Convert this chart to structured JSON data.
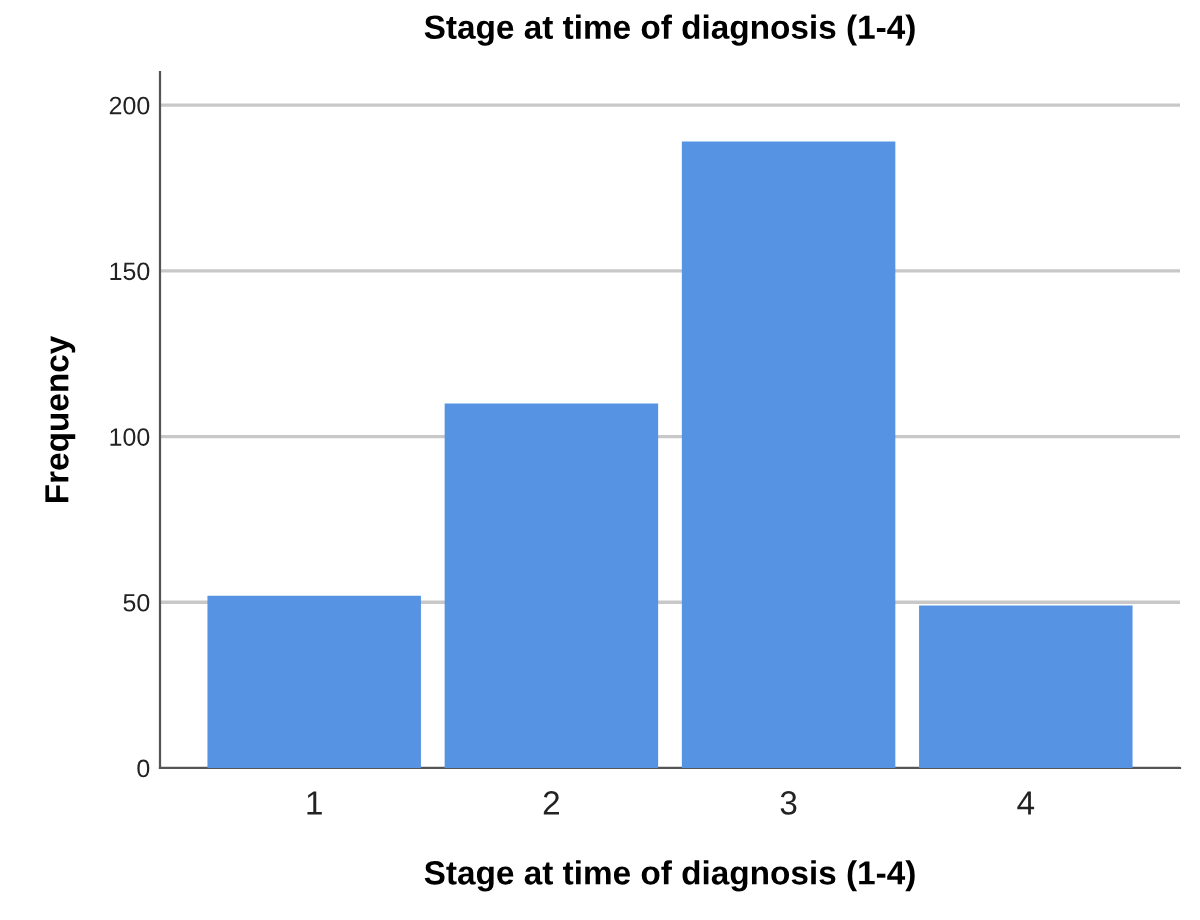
{
  "chart_data": {
    "type": "bar",
    "title": "Stage at time of diagnosis (1-4)",
    "xlabel": "Stage at time of diagnosis (1-4)",
    "ylabel": "Frequency",
    "categories": [
      "1",
      "2",
      "3",
      "4"
    ],
    "values": [
      52,
      110,
      189,
      49
    ],
    "color": "#5694e3",
    "ylim": [
      0,
      210
    ],
    "yticks": [
      0,
      50,
      100,
      150,
      200
    ],
    "grid": "y",
    "legend": false
  }
}
